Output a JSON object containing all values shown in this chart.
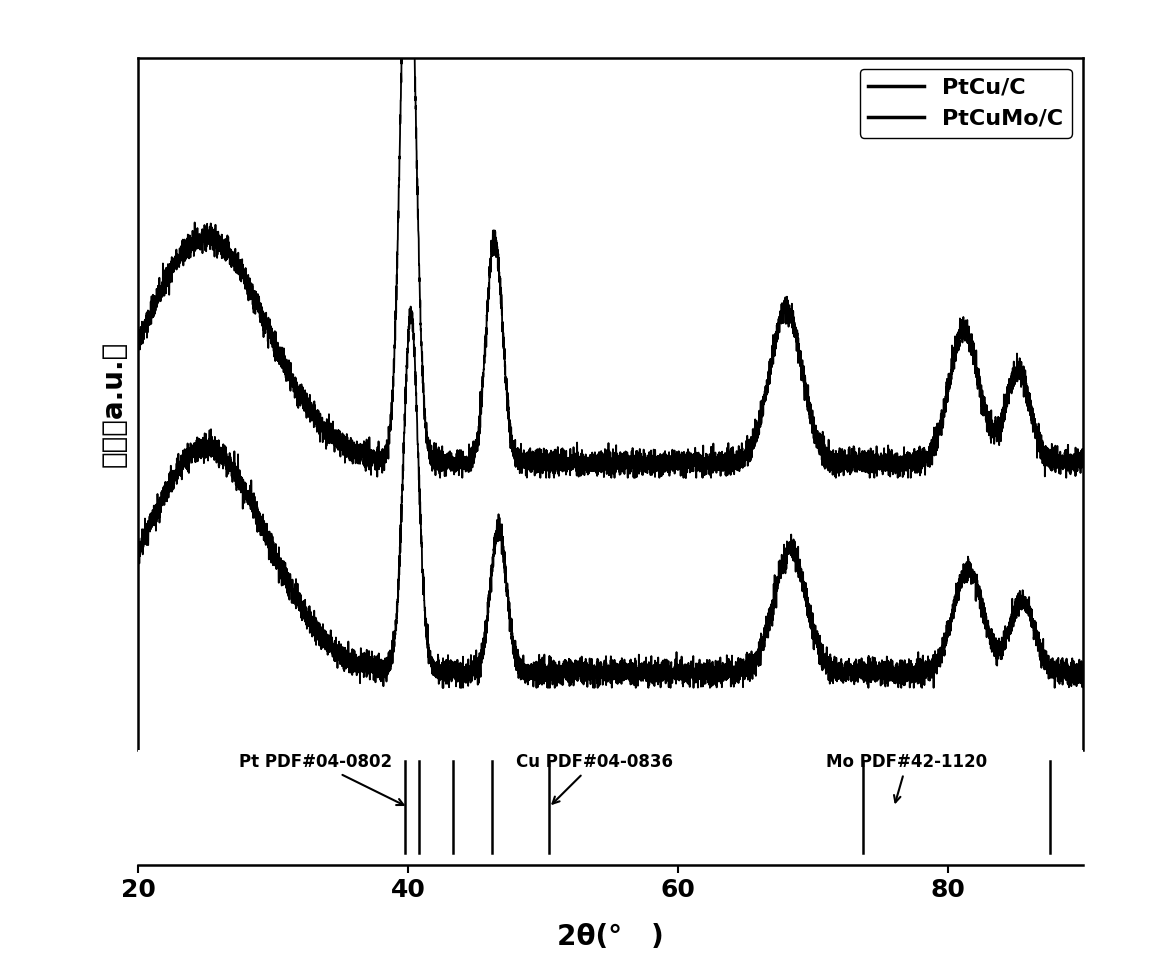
{
  "xlabel": "2θ(°   )",
  "ylabel": "强度（a.u.）",
  "xlim": [
    20,
    90
  ],
  "background_color": "#ffffff",
  "line_color": "#000000",
  "legend_labels": [
    "PtCu/C",
    "PtCuMo/C"
  ],
  "pt_label": "Pt PDF#04-0802",
  "cu_label": "Cu PDF#04-0836",
  "mo_label": "Mo PDF#42-1120",
  "noise_amplitude": 0.006,
  "noise_seed1": 42,
  "noise_seed2": 99,
  "pt_ref_lines": [
    39.76,
    40.8
  ],
  "cu_ref_lines": [
    43.3,
    46.24,
    50.43
  ],
  "mo_ref_lines": [
    73.68,
    87.6
  ]
}
